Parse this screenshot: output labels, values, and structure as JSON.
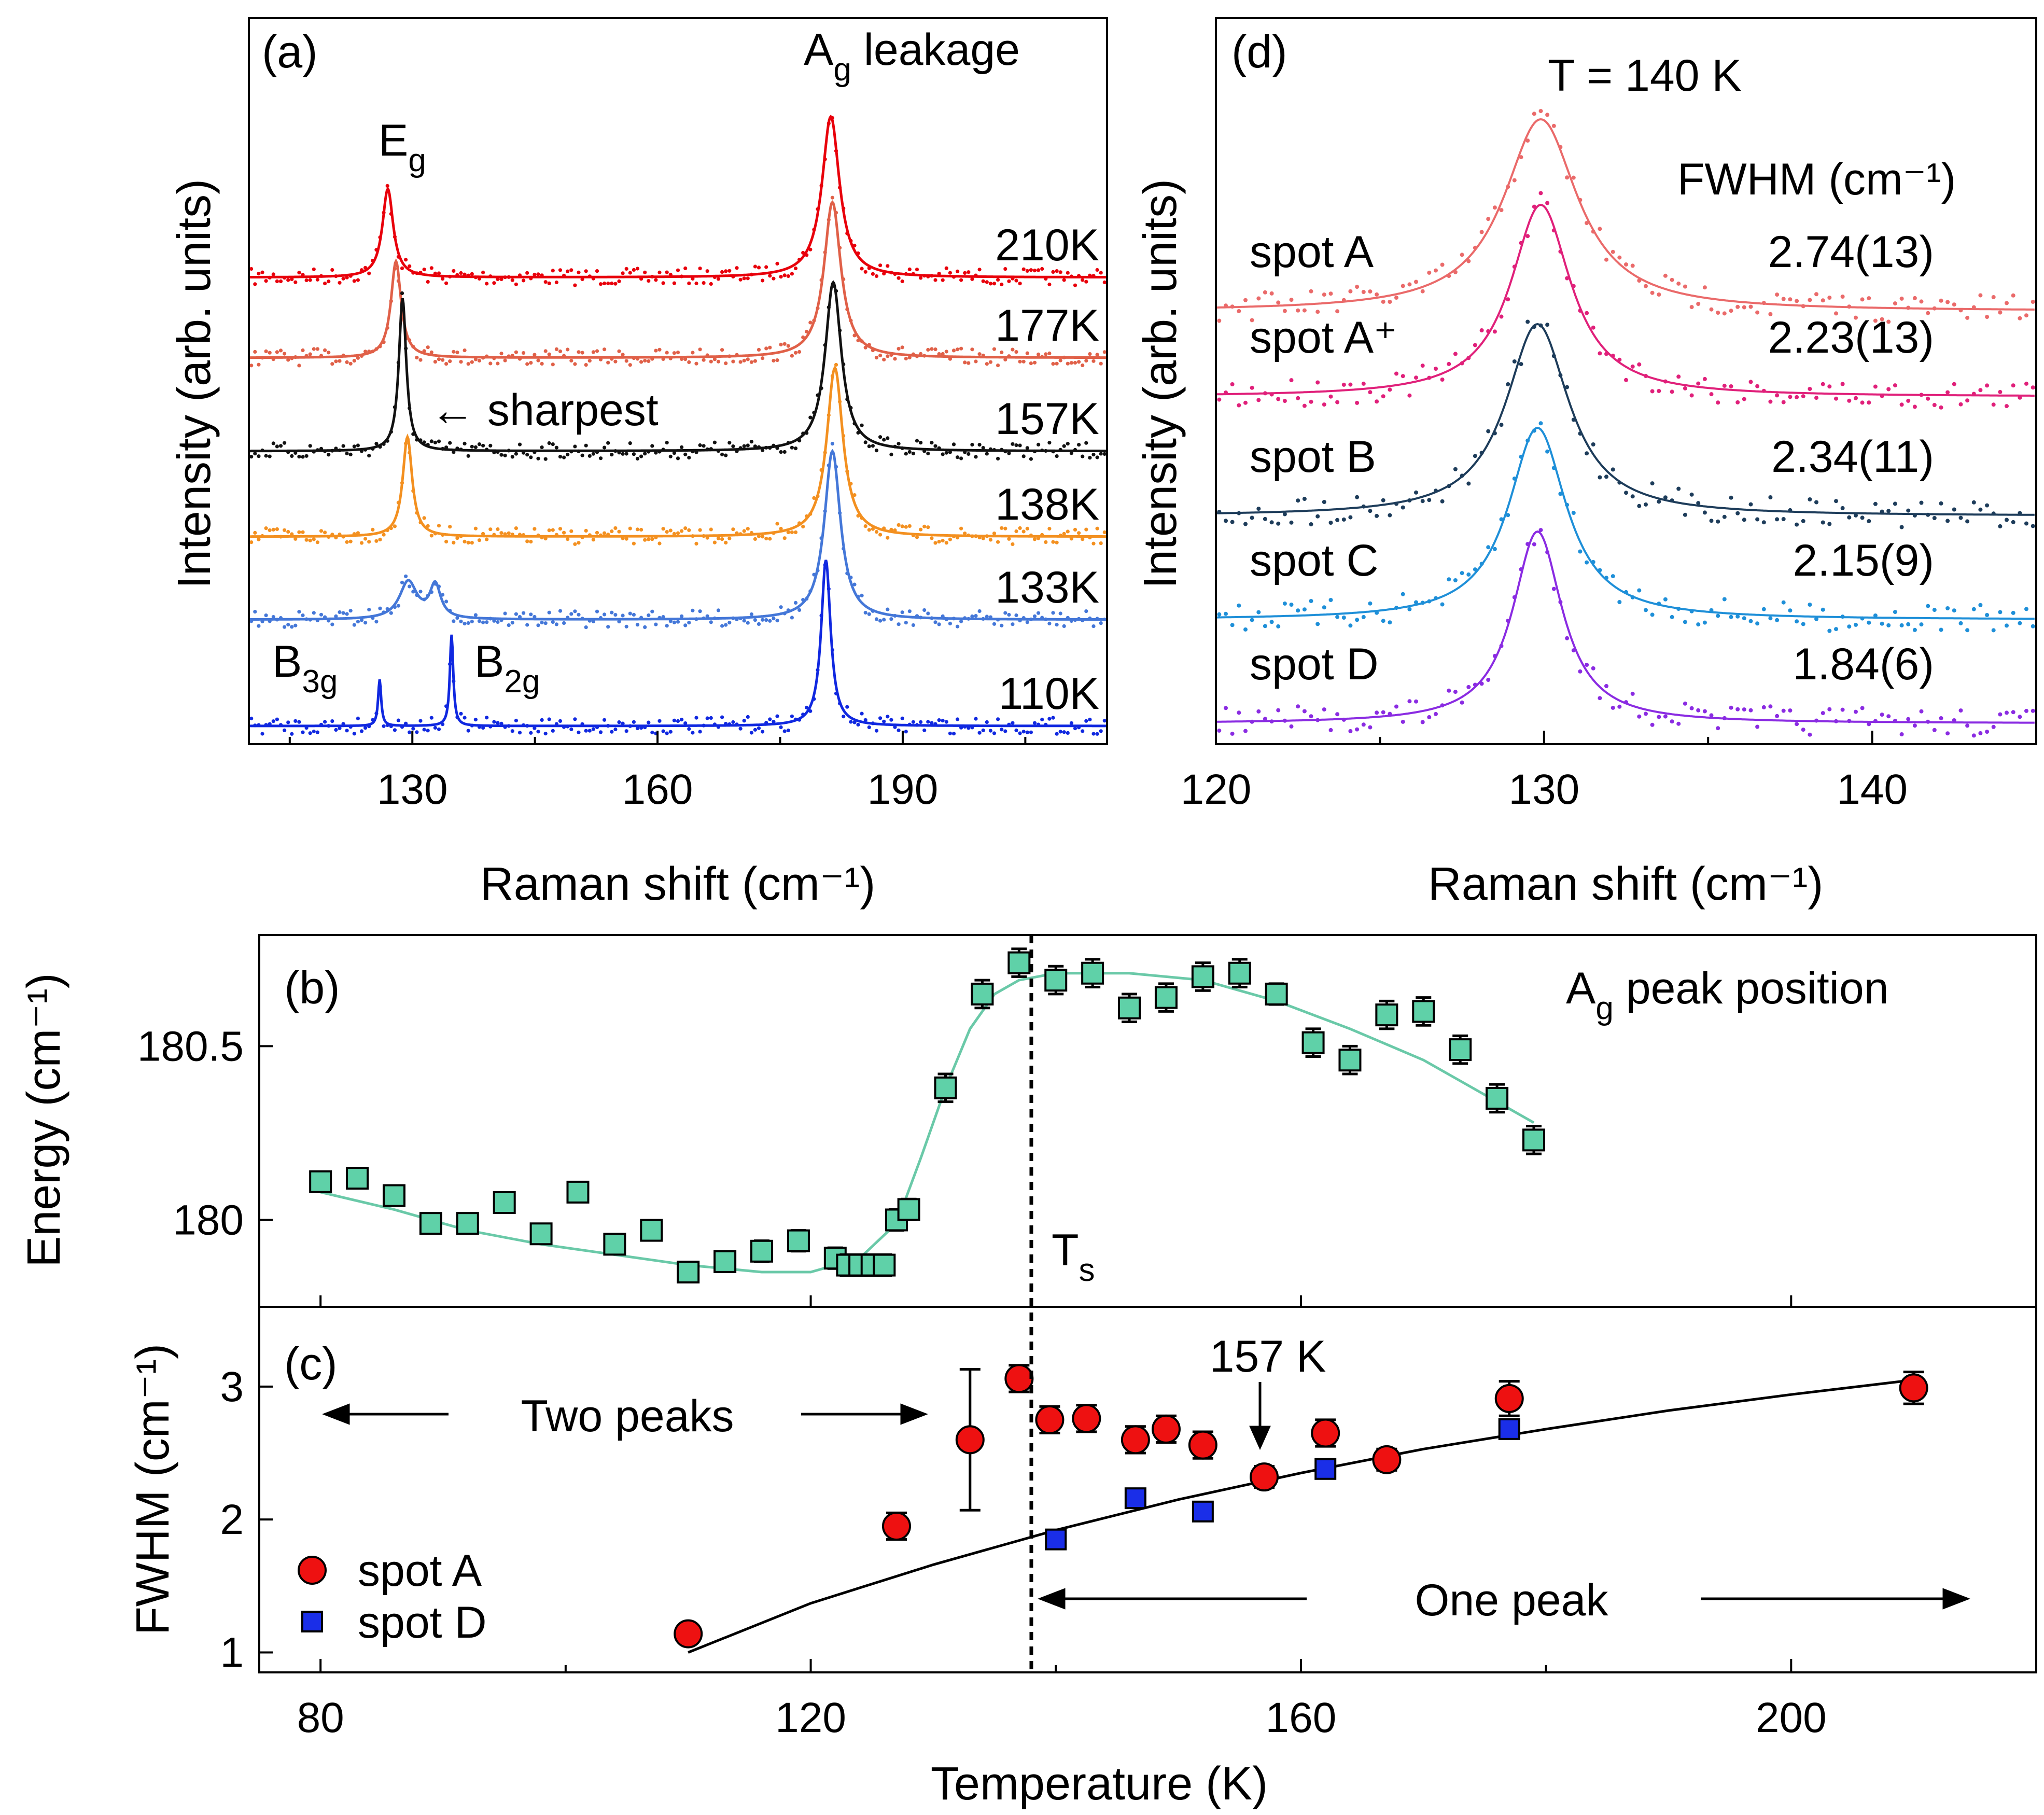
{
  "chart_data": [
    {
      "panel": "a",
      "label": "(a)",
      "type": "line",
      "title": "",
      "xlabel": "Raman shift (cm⁻¹)",
      "ylabel": "Intensity (arb. units)",
      "xlim": [
        110,
        215
      ],
      "xticks": [
        "130",
        "160",
        "190"
      ],
      "annotations": {
        "eg": "E",
        "eg_sub": "g",
        "ag": "A",
        "ag_sub": "g",
        "ag_rest": " leakage",
        "sharpest": "← sharpest",
        "b3g": "B",
        "b3g_sub": "3g",
        "b2g": "B",
        "b2g_sub": "2g"
      },
      "series": [
        {
          "name": "210K",
          "color": "#e8000b",
          "eg_center": 127.0,
          "eg_amp": 0.55,
          "eg_width": 1.6,
          "ag_center": 181.2,
          "ag_amp": 1.0,
          "ag_width": 2.6
        },
        {
          "name": "177K",
          "color": "#e06048",
          "eg_center": 128.0,
          "eg_amp": 0.62,
          "eg_width": 1.5,
          "ag_center": 181.4,
          "ag_amp": 1.0,
          "ag_width": 2.5
        },
        {
          "name": "157K",
          "color": "#111111",
          "eg_center": 128.8,
          "eg_amp": 0.95,
          "eg_width": 1.1,
          "ag_center": 181.5,
          "ag_amp": 1.05,
          "ag_width": 2.4
        },
        {
          "name": "138K",
          "color": "#f39020",
          "eg_center": 129.4,
          "eg_amp": 0.62,
          "eg_width": 1.4,
          "ag_center": 181.7,
          "ag_amp": 1.05,
          "ag_width": 2.4
        },
        {
          "name": "133K",
          "color": "#4477d8",
          "eg_center": 129.5,
          "eg_amp": 0.25,
          "eg_width": 2.6,
          "ag_center": 181.4,
          "ag_amp": 1.12,
          "ag_width": 2.4
        },
        {
          "name": "110K",
          "color": "#1028e0",
          "eg_center": 126.0,
          "eg_amp": 0.28,
          "eg_width": 0.45,
          "ag_center": 180.6,
          "ag_amp": 1.0,
          "ag_width": 1.4,
          "extra_center": 134.8,
          "extra_amp": 0.55,
          "extra_width": 0.5
        }
      ]
    },
    {
      "panel": "d",
      "label": "(d)",
      "type": "line",
      "title": "T = 140 K",
      "xlabel": "Raman shift (cm⁻¹)",
      "ylabel": "Intensity (arb. units)",
      "xlim": [
        120,
        145
      ],
      "xticks": [
        "120",
        "130",
        "140"
      ],
      "fwhm_header": "FWHM (cm⁻¹)",
      "series": [
        {
          "name": "spot A",
          "fwhm": "2.74(13)",
          "color": "#ea6a6a",
          "center": 129.9,
          "width": 2.74
        },
        {
          "name": "spot A⁺",
          "fwhm": "2.23(13)",
          "color": "#e0207a",
          "center": 129.9,
          "width": 2.23
        },
        {
          "name": "spot B",
          "fwhm": "2.34(11)",
          "color": "#1d3c5a",
          "center": 129.8,
          "width": 2.34
        },
        {
          "name": "spot C",
          "fwhm": "2.15(9)",
          "color": "#1e8fd8",
          "center": 129.8,
          "width": 2.15
        },
        {
          "name": "spot D",
          "fwhm": "1.84(6)",
          "color": "#8a2be2",
          "center": 129.8,
          "width": 1.84
        }
      ]
    },
    {
      "panel": "b",
      "label": "(b)",
      "type": "scatter",
      "title": "A",
      "title_sub": "g",
      "title_rest": " peak position",
      "ylabel": "Energy (cm⁻¹)",
      "xlim": [
        75,
        220
      ],
      "ylim": [
        179.75,
        180.82
      ],
      "yticks": [
        "180",
        "180.5"
      ],
      "ts_label": "T",
      "ts_sub": "s",
      "ts_value": 138,
      "points": [
        {
          "x": 80,
          "y": 180.11,
          "err": 0.02
        },
        {
          "x": 83,
          "y": 180.12,
          "err": 0.02
        },
        {
          "x": 86,
          "y": 180.07,
          "err": 0.02
        },
        {
          "x": 89,
          "y": 179.99,
          "err": 0.02
        },
        {
          "x": 92,
          "y": 179.99,
          "err": 0.02
        },
        {
          "x": 95,
          "y": 180.05,
          "err": 0.02
        },
        {
          "x": 98,
          "y": 179.96,
          "err": 0.02
        },
        {
          "x": 101,
          "y": 180.08,
          "err": 0.02
        },
        {
          "x": 104,
          "y": 179.93,
          "err": 0.02
        },
        {
          "x": 107,
          "y": 179.97,
          "err": 0.02
        },
        {
          "x": 110,
          "y": 179.85,
          "err": 0.025
        },
        {
          "x": 113,
          "y": 179.88,
          "err": 0.02
        },
        {
          "x": 116,
          "y": 179.91,
          "err": 0.03
        },
        {
          "x": 119,
          "y": 179.94,
          "err": 0.03
        },
        {
          "x": 122,
          "y": 179.89,
          "err": 0.03
        },
        {
          "x": 123,
          "y": 179.87,
          "err": 0.03
        },
        {
          "x": 124,
          "y": 179.87,
          "err": 0.03
        },
        {
          "x": 125,
          "y": 179.87,
          "err": 0.03
        },
        {
          "x": 126,
          "y": 179.87,
          "err": 0.03
        },
        {
          "x": 127,
          "y": 180.0,
          "err": 0.03
        },
        {
          "x": 128,
          "y": 180.03,
          "err": 0.03
        },
        {
          "x": 131,
          "y": 180.38,
          "err": 0.04
        },
        {
          "x": 134,
          "y": 180.65,
          "err": 0.04
        },
        {
          "x": 137,
          "y": 180.74,
          "err": 0.04
        },
        {
          "x": 140,
          "y": 180.69,
          "err": 0.04
        },
        {
          "x": 143,
          "y": 180.71,
          "err": 0.04
        },
        {
          "x": 146,
          "y": 180.61,
          "err": 0.04
        },
        {
          "x": 149,
          "y": 180.64,
          "err": 0.04
        },
        {
          "x": 152,
          "y": 180.7,
          "err": 0.04
        },
        {
          "x": 155,
          "y": 180.71,
          "err": 0.04
        },
        {
          "x": 158,
          "y": 180.65,
          "err": 0.03
        },
        {
          "x": 161,
          "y": 180.51,
          "err": 0.04
        },
        {
          "x": 164,
          "y": 180.46,
          "err": 0.04
        },
        {
          "x": 167,
          "y": 180.59,
          "err": 0.04
        },
        {
          "x": 170,
          "y": 180.6,
          "err": 0.04
        },
        {
          "x": 173,
          "y": 180.49,
          "err": 0.04
        },
        {
          "x": 176,
          "y": 180.35,
          "err": 0.04
        },
        {
          "x": 179,
          "y": 180.23,
          "err": 0.04
        }
      ],
      "fit": [
        [
          80,
          180.08
        ],
        [
          86,
          180.03
        ],
        [
          92,
          179.97
        ],
        [
          98,
          179.93
        ],
        [
          104,
          179.9
        ],
        [
          110,
          179.87
        ],
        [
          116,
          179.85
        ],
        [
          120,
          179.85
        ],
        [
          124,
          179.89
        ],
        [
          127,
          179.99
        ],
        [
          129,
          180.18
        ],
        [
          131,
          180.38
        ],
        [
          133,
          180.55
        ],
        [
          135,
          180.65
        ],
        [
          137,
          180.69
        ],
        [
          140,
          180.71
        ],
        [
          146,
          180.71
        ],
        [
          152,
          180.69
        ],
        [
          158,
          180.63
        ],
        [
          164,
          180.55
        ],
        [
          170,
          180.46
        ],
        [
          176,
          180.34
        ],
        [
          179,
          180.28
        ]
      ]
    },
    {
      "panel": "c",
      "label": "(c)",
      "type": "scatter",
      "xlabel": "Temperature (K)",
      "ylabel": "FWHM (cm⁻¹)",
      "xlim": [
        75,
        220
      ],
      "ylim": [
        0.85,
        3.6
      ],
      "xticks": [
        "80",
        "120",
        "160",
        "200"
      ],
      "yticks": [
        "1",
        "2",
        "3"
      ],
      "two_peaks": "Two peaks",
      "one_peak": "One peak",
      "arrow_label": "157 K",
      "legend": [
        {
          "name": "spot A",
          "color": "#ee1111",
          "marker": "circle"
        },
        {
          "name": "spot D",
          "color": "#1a2ee8",
          "marker": "square"
        }
      ],
      "spotA": [
        {
          "x": 110,
          "y": 1.14,
          "err": 0.05
        },
        {
          "x": 127,
          "y": 1.95,
          "err": 0.1
        },
        {
          "x": 133,
          "y": 2.6,
          "err": 0.53
        },
        {
          "x": 137,
          "y": 3.06,
          "err": 0.1
        },
        {
          "x": 139.5,
          "y": 2.75,
          "err": 0.1
        },
        {
          "x": 142.5,
          "y": 2.76,
          "err": 0.1
        },
        {
          "x": 146.5,
          "y": 2.6,
          "err": 0.1
        },
        {
          "x": 149,
          "y": 2.68,
          "err": 0.1
        },
        {
          "x": 152,
          "y": 2.56,
          "err": 0.1
        },
        {
          "x": 157,
          "y": 2.32,
          "err": 0.08
        },
        {
          "x": 162,
          "y": 2.65,
          "err": 0.1
        },
        {
          "x": 167,
          "y": 2.45,
          "err": 0.08
        },
        {
          "x": 177,
          "y": 2.91,
          "err": 0.13
        },
        {
          "x": 210,
          "y": 2.99,
          "err": 0.12
        }
      ],
      "spotD": [
        {
          "x": 140,
          "y": 1.85,
          "err": 0.04
        },
        {
          "x": 146.5,
          "y": 2.16,
          "err": 0.06
        },
        {
          "x": 152,
          "y": 2.06,
          "err": 0.06
        },
        {
          "x": 162,
          "y": 2.38,
          "err": 0.07
        },
        {
          "x": 177,
          "y": 2.68,
          "err": 0.07
        }
      ],
      "fit": [
        [
          110,
          1.0
        ],
        [
          120,
          1.37
        ],
        [
          130,
          1.66
        ],
        [
          140,
          1.92
        ],
        [
          150,
          2.15
        ],
        [
          160,
          2.35
        ],
        [
          170,
          2.53
        ],
        [
          180,
          2.68
        ],
        [
          190,
          2.82
        ],
        [
          200,
          2.94
        ],
        [
          210,
          3.05
        ]
      ]
    }
  ]
}
